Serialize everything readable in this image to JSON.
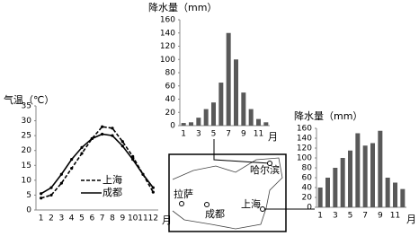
{
  "chart_data": [
    {
      "type": "line",
      "y_label": "气温（℃）",
      "x_label": "月",
      "categories": [
        1,
        2,
        3,
        4,
        5,
        6,
        7,
        8,
        9,
        10,
        11,
        12
      ],
      "series": [
        {
          "name": "上海",
          "color": "#000000",
          "dashed": true,
          "values": [
            4,
            5,
            9,
            14,
            19,
            24,
            28,
            27.5,
            23,
            18,
            12,
            6
          ]
        },
        {
          "name": "成都",
          "color": "#000000",
          "dashed": false,
          "values": [
            5.5,
            7.5,
            12,
            17,
            21,
            24,
            25.5,
            25,
            21.5,
            17,
            12,
            7.5
          ]
        }
      ],
      "ylim": [
        0,
        35
      ],
      "yticks": [
        0,
        5,
        10,
        15,
        20,
        25,
        30,
        35
      ]
    },
    {
      "type": "bar",
      "y_label": "降水量（mm）",
      "x_label": "月",
      "color": "#595959",
      "categories": [
        1,
        null,
        3,
        null,
        5,
        null,
        7,
        null,
        9,
        null,
        11,
        null
      ],
      "values": [
        4,
        5,
        12,
        25,
        35,
        65,
        140,
        100,
        50,
        25,
        10,
        5
      ],
      "ylim": [
        0,
        160
      ],
      "yticks": [
        0,
        20,
        40,
        60,
        80,
        100,
        120,
        140,
        160
      ]
    },
    {
      "type": "bar",
      "y_label": "降水量（mm）",
      "x_label": "月",
      "color": "#595959",
      "categories": [
        1,
        null,
        3,
        null,
        5,
        null,
        7,
        null,
        9,
        null,
        11,
        null
      ],
      "values": [
        40,
        60,
        80,
        100,
        115,
        150,
        125,
        130,
        155,
        60,
        50,
        37
      ],
      "ylim": [
        0,
        160
      ],
      "yticks": [
        0,
        20,
        40,
        60,
        80,
        100,
        120,
        140,
        160
      ]
    }
  ],
  "map": {
    "labels": [
      "哈尔滨",
      "拉萨",
      "成都",
      "上海"
    ]
  }
}
